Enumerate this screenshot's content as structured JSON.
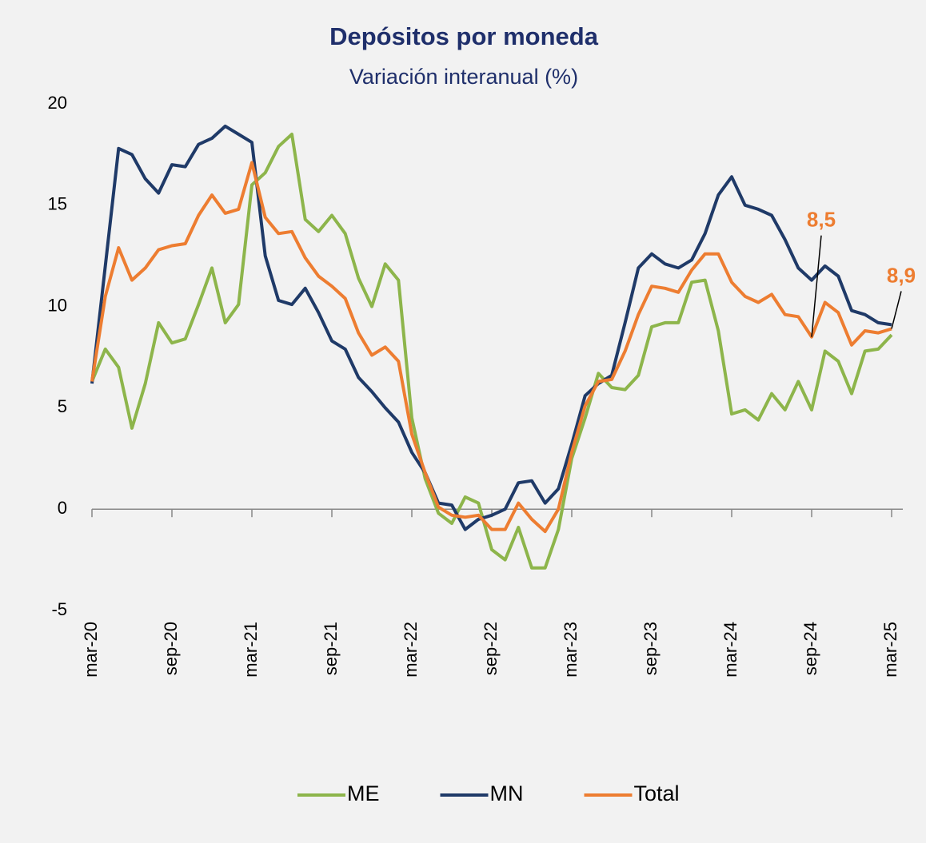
{
  "chart_data": {
    "type": "line",
    "title": "Depósitos por moneda",
    "subtitle": "Variación interanual (%)",
    "categories": [
      "mar-20",
      null,
      null,
      null,
      null,
      null,
      "sep-20",
      null,
      null,
      null,
      null,
      null,
      "mar-21",
      null,
      null,
      null,
      null,
      null,
      "sep-21",
      null,
      null,
      null,
      null,
      null,
      "mar-22",
      null,
      null,
      null,
      null,
      null,
      "sep-22",
      null,
      null,
      null,
      null,
      null,
      "mar-23",
      null,
      null,
      null,
      null,
      null,
      "sep-23",
      null,
      null,
      null,
      null,
      null,
      "mar-24",
      null,
      null,
      null,
      null,
      null,
      "sep-24",
      null,
      null,
      null,
      null,
      null,
      "mar-25"
    ],
    "series": [
      {
        "name": "ME",
        "color": "#8db54b",
        "values": [
          6.3,
          7.9,
          7.0,
          4.0,
          6.2,
          9.2,
          8.2,
          8.4,
          10.1,
          11.9,
          9.2,
          10.1,
          16.0,
          16.6,
          17.9,
          18.5,
          14.3,
          13.7,
          14.5,
          13.6,
          11.4,
          10.0,
          12.1,
          11.3,
          4.5,
          1.5,
          -0.2,
          -0.7,
          0.6,
          0.3,
          -2.0,
          -2.5,
          -0.9,
          -2.9,
          -2.9,
          -1.0,
          2.5,
          4.5,
          6.7,
          6.0,
          5.9,
          6.6,
          9.0,
          9.2,
          9.2,
          11.2,
          11.3,
          8.8,
          4.7,
          4.9,
          4.4,
          5.7,
          4.9,
          6.3,
          4.9,
          7.8,
          7.3,
          5.7,
          7.8,
          7.9,
          8.6
        ]
      },
      {
        "name": "MN",
        "color": "#1f3a68",
        "values": [
          6.2,
          12.0,
          17.8,
          17.5,
          16.3,
          15.6,
          17.0,
          16.9,
          18.0,
          18.3,
          18.9,
          18.5,
          18.1,
          12.5,
          10.3,
          10.1,
          10.9,
          9.7,
          8.3,
          7.9,
          6.5,
          5.8,
          5.0,
          4.3,
          2.8,
          1.8,
          0.3,
          0.2,
          -1.0,
          -0.5,
          -0.3,
          0.0,
          1.3,
          1.4,
          0.3,
          1.0,
          3.2,
          5.6,
          6.2,
          6.6,
          9.2,
          11.9,
          12.6,
          12.1,
          11.9,
          12.3,
          13.6,
          15.5,
          16.4,
          15.0,
          14.8,
          14.5,
          13.3,
          11.9,
          11.3,
          12.0,
          11.5,
          9.8,
          9.6,
          9.2,
          9.1
        ]
      },
      {
        "name": "Total",
        "color": "#ed7d31",
        "values": [
          6.3,
          10.5,
          12.9,
          11.3,
          11.9,
          12.8,
          13.0,
          13.1,
          14.5,
          15.5,
          14.6,
          14.8,
          17.1,
          14.4,
          13.6,
          13.7,
          12.4,
          11.5,
          11.0,
          10.4,
          8.7,
          7.6,
          8.0,
          7.3,
          3.7,
          1.8,
          0.1,
          -0.3,
          -0.4,
          -0.3,
          -1.0,
          -1.0,
          0.3,
          -0.5,
          -1.1,
          0.0,
          2.8,
          5.1,
          6.3,
          6.4,
          7.8,
          9.6,
          11.0,
          10.9,
          10.7,
          11.8,
          12.6,
          12.6,
          11.2,
          10.5,
          10.2,
          10.6,
          9.6,
          9.5,
          8.5,
          10.2,
          9.7,
          8.1,
          8.8,
          8.7,
          8.9
        ]
      }
    ],
    "annotations": [
      {
        "label": "8,5",
        "value": 8.5,
        "x": "sep-24"
      },
      {
        "label": "8,9",
        "value": 8.9,
        "x": "mar-25"
      }
    ],
    "ylim": [
      -5,
      20
    ],
    "yticks": [
      -5,
      0,
      5,
      10,
      15,
      20
    ],
    "legend": "bottom"
  }
}
